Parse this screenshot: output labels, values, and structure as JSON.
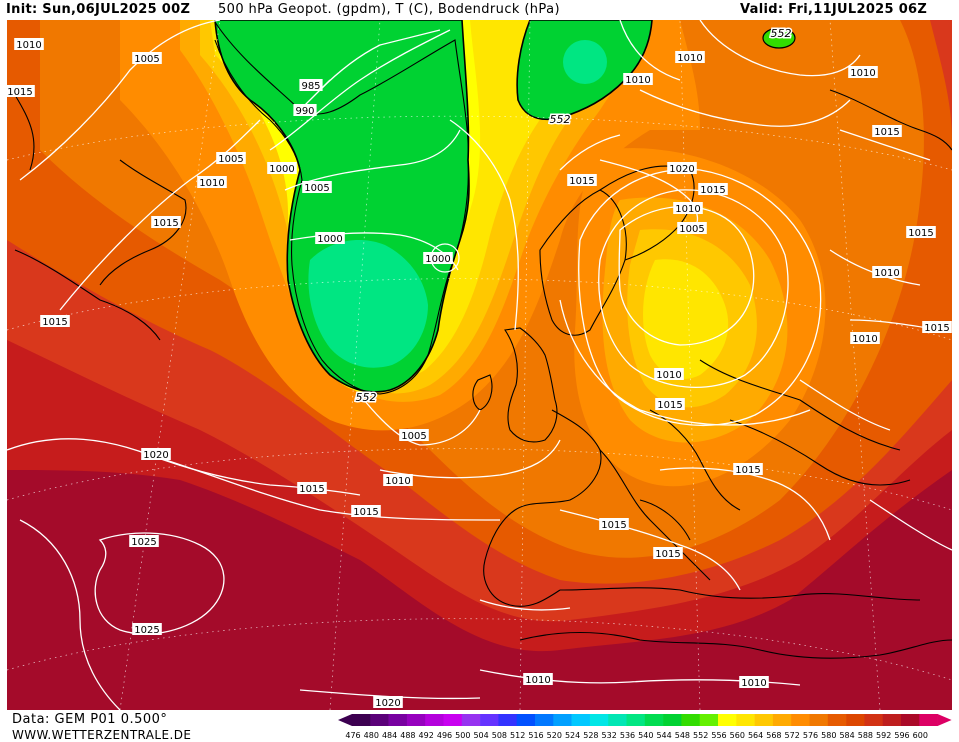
{
  "header": {
    "init": "Init: Sun,06JUL2025 00Z",
    "title": "500 hPa Geopot. (gpdm), T (C), Bodendruck (hPa)",
    "valid": "Valid: Fri,11JUL2025 06Z"
  },
  "footer": {
    "source": "Data: GEM P01 0.500°",
    "site": "WWW.WETTERZENTRALE.DE"
  },
  "colors": {
    "land_outline": "#000000",
    "isobar": "#ffffff",
    "geopot_552_contour": "#000000"
  },
  "scale": {
    "labels": [
      "476",
      "480",
      "484",
      "488",
      "492",
      "496",
      "500",
      "504",
      "508",
      "512",
      "516",
      "520",
      "524",
      "528",
      "532",
      "536",
      "540",
      "544",
      "548",
      "552",
      "556",
      "560",
      "564",
      "568",
      "572",
      "576",
      "580",
      "584",
      "588",
      "592",
      "596",
      "600"
    ],
    "colors": [
      "#3c0050",
      "#5a0078",
      "#7800a0",
      "#9600be",
      "#b400dc",
      "#c800f0",
      "#9632f0",
      "#6432ff",
      "#3232ff",
      "#0050ff",
      "#0078ff",
      "#00a0ff",
      "#00c8ff",
      "#00e6e6",
      "#00e6b4",
      "#00e682",
      "#00dc50",
      "#00d232",
      "#32dc00",
      "#64f000",
      "#ffff00",
      "#ffe600",
      "#ffc800",
      "#ffaa00",
      "#ff8c00",
      "#f07800",
      "#e65a00",
      "#dc4600",
      "#d23214",
      "#be1e1e",
      "#aa0a28",
      "#dc0064"
    ]
  },
  "labels": {
    "isobars": [
      "1010",
      "1005",
      "1015",
      "985",
      "990",
      "1005",
      "1010",
      "1000",
      "1005",
      "1015",
      "1000",
      "1000",
      "1015",
      "1010",
      "1015",
      "1020",
      "1015",
      "1010",
      "1005",
      "1015",
      "1010",
      "1010",
      "1010",
      "1010",
      "1015",
      "1015",
      "1005",
      "1010",
      "1015",
      "1020",
      "1015",
      "1010",
      "1015",
      "1015",
      "1015",
      "1025",
      "1025",
      "1015",
      "1020",
      "1010",
      "1010"
    ],
    "contour_552": [
      "552",
      "552",
      "552"
    ]
  }
}
